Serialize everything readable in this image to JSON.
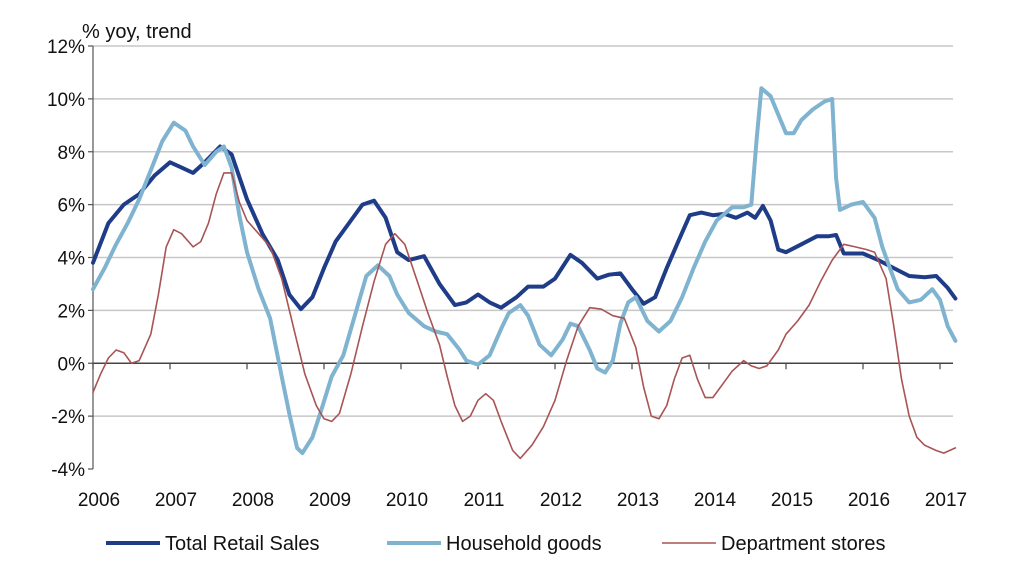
{
  "chart_data": {
    "type": "line",
    "unit_label": "% yoy, trend",
    "xlim": [
      2006,
      2017.2
    ],
    "ylim": [
      -4,
      12
    ],
    "x_ticks": [
      "2006",
      "2007",
      "2008",
      "2009",
      "2010",
      "2011",
      "2012",
      "2013",
      "2014",
      "2015",
      "2016",
      "2017"
    ],
    "y_ticks": [
      "-4%",
      "-2%",
      "0%",
      "2%",
      "4%",
      "6%",
      "8%",
      "10%",
      "12%"
    ],
    "grid": "horizontal",
    "legend_position": "bottom",
    "series": [
      {
        "name": "Total Retail Sales",
        "color": "#1F3C88",
        "width": 4,
        "points": [
          [
            2006.0,
            3.8
          ],
          [
            2006.2,
            5.3
          ],
          [
            2006.4,
            6.0
          ],
          [
            2006.6,
            6.4
          ],
          [
            2006.8,
            7.1
          ],
          [
            2007.0,
            7.6
          ],
          [
            2007.15,
            7.4
          ],
          [
            2007.3,
            7.2
          ],
          [
            2007.45,
            7.6
          ],
          [
            2007.65,
            8.2
          ],
          [
            2007.8,
            7.9
          ],
          [
            2008.0,
            6.2
          ],
          [
            2008.2,
            4.9
          ],
          [
            2008.4,
            3.9
          ],
          [
            2008.55,
            2.6
          ],
          [
            2008.7,
            2.05
          ],
          [
            2008.85,
            2.5
          ],
          [
            2009.0,
            3.6
          ],
          [
            2009.15,
            4.6
          ],
          [
            2009.35,
            5.4
          ],
          [
            2009.5,
            6.0
          ],
          [
            2009.65,
            6.15
          ],
          [
            2009.8,
            5.5
          ],
          [
            2009.95,
            4.2
          ],
          [
            2010.1,
            3.9
          ],
          [
            2010.3,
            4.05
          ],
          [
            2010.5,
            3.0
          ],
          [
            2010.7,
            2.2
          ],
          [
            2010.85,
            2.3
          ],
          [
            2011.0,
            2.6
          ],
          [
            2011.15,
            2.3
          ],
          [
            2011.3,
            2.1
          ],
          [
            2011.5,
            2.5
          ],
          [
            2011.65,
            2.9
          ],
          [
            2011.85,
            2.9
          ],
          [
            2012.0,
            3.2
          ],
          [
            2012.2,
            4.1
          ],
          [
            2012.35,
            3.8
          ],
          [
            2012.55,
            3.2
          ],
          [
            2012.7,
            3.35
          ],
          [
            2012.85,
            3.4
          ],
          [
            2013.0,
            2.8
          ],
          [
            2013.15,
            2.25
          ],
          [
            2013.3,
            2.5
          ],
          [
            2013.45,
            3.6
          ],
          [
            2013.6,
            4.6
          ],
          [
            2013.75,
            5.6
          ],
          [
            2013.9,
            5.7
          ],
          [
            2014.05,
            5.6
          ],
          [
            2014.2,
            5.65
          ],
          [
            2014.35,
            5.5
          ],
          [
            2014.5,
            5.7
          ],
          [
            2014.6,
            5.5
          ],
          [
            2014.7,
            5.95
          ],
          [
            2014.8,
            5.4
          ],
          [
            2014.9,
            4.3
          ],
          [
            2015.0,
            4.2
          ],
          [
            2015.2,
            4.5
          ],
          [
            2015.4,
            4.8
          ],
          [
            2015.55,
            4.8
          ],
          [
            2015.65,
            4.85
          ],
          [
            2015.75,
            4.15
          ],
          [
            2015.9,
            4.15
          ],
          [
            2016.0,
            4.15
          ],
          [
            2016.2,
            3.9
          ],
          [
            2016.4,
            3.6
          ],
          [
            2016.6,
            3.3
          ],
          [
            2016.8,
            3.25
          ],
          [
            2016.95,
            3.3
          ],
          [
            2017.1,
            2.85
          ],
          [
            2017.2,
            2.45
          ]
        ]
      },
      {
        "name": "Household goods",
        "color": "#7FB3CF",
        "width": 4,
        "points": [
          [
            2006.0,
            2.8
          ],
          [
            2006.15,
            3.6
          ],
          [
            2006.3,
            4.5
          ],
          [
            2006.45,
            5.3
          ],
          [
            2006.6,
            6.2
          ],
          [
            2006.75,
            7.3
          ],
          [
            2006.9,
            8.4
          ],
          [
            2007.05,
            9.1
          ],
          [
            2007.2,
            8.8
          ],
          [
            2007.3,
            8.2
          ],
          [
            2007.45,
            7.5
          ],
          [
            2007.6,
            8.0
          ],
          [
            2007.7,
            8.2
          ],
          [
            2007.8,
            7.4
          ],
          [
            2007.9,
            5.6
          ],
          [
            2008.0,
            4.2
          ],
          [
            2008.15,
            2.8
          ],
          [
            2008.3,
            1.7
          ],
          [
            2008.45,
            -0.5
          ],
          [
            2008.55,
            -1.9
          ],
          [
            2008.65,
            -3.2
          ],
          [
            2008.72,
            -3.4
          ],
          [
            2008.85,
            -2.8
          ],
          [
            2008.95,
            -1.9
          ],
          [
            2009.1,
            -0.5
          ],
          [
            2009.25,
            0.3
          ],
          [
            2009.4,
            1.8
          ],
          [
            2009.55,
            3.3
          ],
          [
            2009.7,
            3.7
          ],
          [
            2009.85,
            3.3
          ],
          [
            2009.95,
            2.6
          ],
          [
            2010.1,
            1.9
          ],
          [
            2010.3,
            1.4
          ],
          [
            2010.45,
            1.2
          ],
          [
            2010.6,
            1.1
          ],
          [
            2010.75,
            0.55
          ],
          [
            2010.85,
            0.1
          ],
          [
            2011.0,
            -0.05
          ],
          [
            2011.15,
            0.3
          ],
          [
            2011.3,
            1.3
          ],
          [
            2011.4,
            1.9
          ],
          [
            2011.55,
            2.2
          ],
          [
            2011.65,
            1.8
          ],
          [
            2011.8,
            0.7
          ],
          [
            2011.95,
            0.3
          ],
          [
            2012.1,
            0.9
          ],
          [
            2012.2,
            1.5
          ],
          [
            2012.3,
            1.4
          ],
          [
            2012.45,
            0.5
          ],
          [
            2012.55,
            -0.2
          ],
          [
            2012.65,
            -0.35
          ],
          [
            2012.75,
            0.1
          ],
          [
            2012.85,
            1.5
          ],
          [
            2012.95,
            2.3
          ],
          [
            2013.05,
            2.5
          ],
          [
            2013.2,
            1.6
          ],
          [
            2013.35,
            1.2
          ],
          [
            2013.5,
            1.6
          ],
          [
            2013.65,
            2.5
          ],
          [
            2013.8,
            3.6
          ],
          [
            2013.95,
            4.6
          ],
          [
            2014.1,
            5.4
          ],
          [
            2014.3,
            5.9
          ],
          [
            2014.45,
            5.9
          ],
          [
            2014.55,
            6.0
          ],
          [
            2014.62,
            8.5
          ],
          [
            2014.68,
            10.4
          ],
          [
            2014.8,
            10.1
          ],
          [
            2014.9,
            9.4
          ],
          [
            2015.0,
            8.7
          ],
          [
            2015.1,
            8.7
          ],
          [
            2015.2,
            9.2
          ],
          [
            2015.35,
            9.6
          ],
          [
            2015.5,
            9.9
          ],
          [
            2015.6,
            10.0
          ],
          [
            2015.65,
            7.0
          ],
          [
            2015.7,
            5.8
          ],
          [
            2015.85,
            6.0
          ],
          [
            2016.0,
            6.1
          ],
          [
            2016.15,
            5.5
          ],
          [
            2016.25,
            4.4
          ],
          [
            2016.35,
            3.6
          ],
          [
            2016.45,
            2.8
          ],
          [
            2016.6,
            2.3
          ],
          [
            2016.75,
            2.4
          ],
          [
            2016.9,
            2.8
          ],
          [
            2017.0,
            2.4
          ],
          [
            2017.1,
            1.4
          ],
          [
            2017.2,
            0.85
          ]
        ]
      },
      {
        "name": "Department stores",
        "color": "#A85454",
        "width": 1.6,
        "points": [
          [
            2006.0,
            -1.1
          ],
          [
            2006.1,
            -0.4
          ],
          [
            2006.2,
            0.2
          ],
          [
            2006.3,
            0.5
          ],
          [
            2006.4,
            0.4
          ],
          [
            2006.5,
            0.0
          ],
          [
            2006.6,
            0.1
          ],
          [
            2006.75,
            1.1
          ],
          [
            2006.85,
            2.6
          ],
          [
            2006.95,
            4.4
          ],
          [
            2007.05,
            5.05
          ],
          [
            2007.15,
            4.9
          ],
          [
            2007.3,
            4.4
          ],
          [
            2007.4,
            4.6
          ],
          [
            2007.5,
            5.3
          ],
          [
            2007.6,
            6.4
          ],
          [
            2007.7,
            7.2
          ],
          [
            2007.8,
            7.2
          ],
          [
            2007.9,
            6.1
          ],
          [
            2008.0,
            5.4
          ],
          [
            2008.15,
            4.9
          ],
          [
            2008.3,
            4.4
          ],
          [
            2008.45,
            3.2
          ],
          [
            2008.6,
            1.4
          ],
          [
            2008.75,
            -0.4
          ],
          [
            2008.9,
            -1.6
          ],
          [
            2009.0,
            -2.1
          ],
          [
            2009.1,
            -2.2
          ],
          [
            2009.2,
            -1.9
          ],
          [
            2009.35,
            -0.4
          ],
          [
            2009.5,
            1.4
          ],
          [
            2009.65,
            3.1
          ],
          [
            2009.8,
            4.5
          ],
          [
            2009.92,
            4.9
          ],
          [
            2010.05,
            4.5
          ],
          [
            2010.2,
            3.2
          ],
          [
            2010.35,
            1.9
          ],
          [
            2010.5,
            0.7
          ],
          [
            2010.6,
            -0.5
          ],
          [
            2010.7,
            -1.6
          ],
          [
            2010.8,
            -2.2
          ],
          [
            2010.9,
            -2.0
          ],
          [
            2011.0,
            -1.4
          ],
          [
            2011.1,
            -1.15
          ],
          [
            2011.2,
            -1.4
          ],
          [
            2011.3,
            -2.2
          ],
          [
            2011.45,
            -3.3
          ],
          [
            2011.55,
            -3.6
          ],
          [
            2011.7,
            -3.1
          ],
          [
            2011.85,
            -2.4
          ],
          [
            2012.0,
            -1.4
          ],
          [
            2012.15,
            0.1
          ],
          [
            2012.3,
            1.4
          ],
          [
            2012.45,
            2.1
          ],
          [
            2012.6,
            2.05
          ],
          [
            2012.75,
            1.8
          ],
          [
            2012.9,
            1.7
          ],
          [
            2013.05,
            0.6
          ],
          [
            2013.15,
            -0.9
          ],
          [
            2013.25,
            -2.0
          ],
          [
            2013.35,
            -2.1
          ],
          [
            2013.45,
            -1.6
          ],
          [
            2013.55,
            -0.6
          ],
          [
            2013.65,
            0.2
          ],
          [
            2013.75,
            0.3
          ],
          [
            2013.85,
            -0.6
          ],
          [
            2013.95,
            -1.3
          ],
          [
            2014.05,
            -1.3
          ],
          [
            2014.15,
            -0.9
          ],
          [
            2014.3,
            -0.3
          ],
          [
            2014.45,
            0.1
          ],
          [
            2014.55,
            -0.1
          ],
          [
            2014.65,
            -0.2
          ],
          [
            2014.75,
            -0.1
          ],
          [
            2014.9,
            0.5
          ],
          [
            2015.0,
            1.1
          ],
          [
            2015.15,
            1.6
          ],
          [
            2015.3,
            2.2
          ],
          [
            2015.45,
            3.1
          ],
          [
            2015.6,
            3.9
          ],
          [
            2015.75,
            4.5
          ],
          [
            2015.9,
            4.4
          ],
          [
            2016.05,
            4.3
          ],
          [
            2016.15,
            4.2
          ],
          [
            2016.3,
            3.2
          ],
          [
            2016.4,
            1.4
          ],
          [
            2016.5,
            -0.6
          ],
          [
            2016.6,
            -2.0
          ],
          [
            2016.7,
            -2.8
          ],
          [
            2016.8,
            -3.1
          ],
          [
            2016.95,
            -3.3
          ],
          [
            2017.05,
            -3.4
          ],
          [
            2017.2,
            -3.2
          ]
        ]
      }
    ]
  }
}
